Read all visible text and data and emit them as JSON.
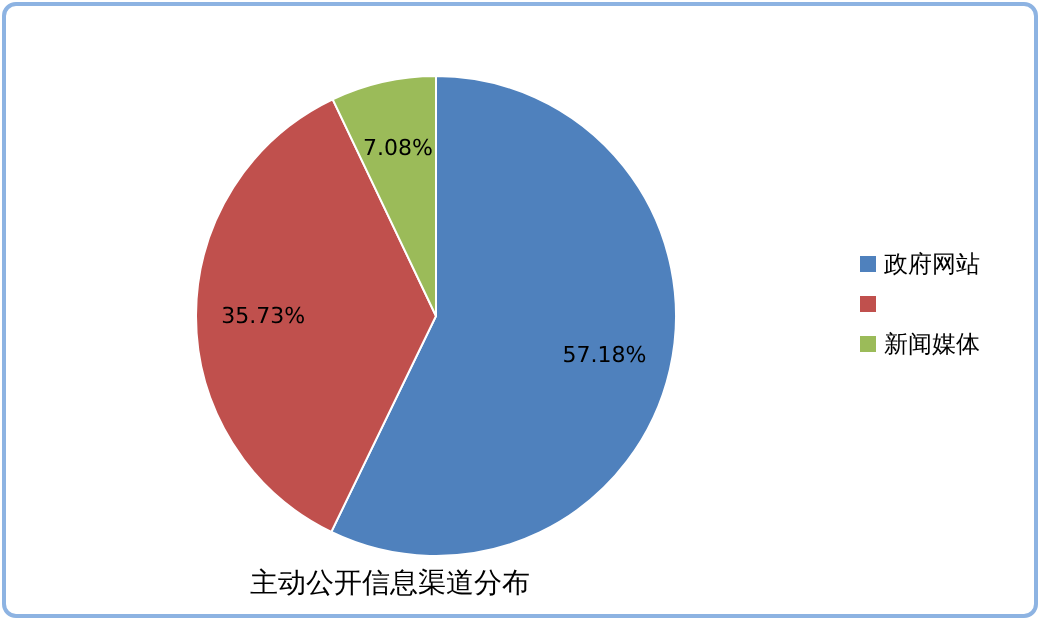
{
  "chart_data": {
    "type": "pie",
    "title": "主动公开信息渠道分布",
    "categories": [
      "政府网站",
      null,
      "新闻媒体"
    ],
    "values": [
      57.18,
      35.73,
      7.08
    ],
    "colors": [
      "#4f81bd",
      "#c0504d",
      "#9bbb59"
    ],
    "value_labels": [
      "57.18%",
      "35.73%",
      "7.08%"
    ],
    "legend": "right"
  }
}
